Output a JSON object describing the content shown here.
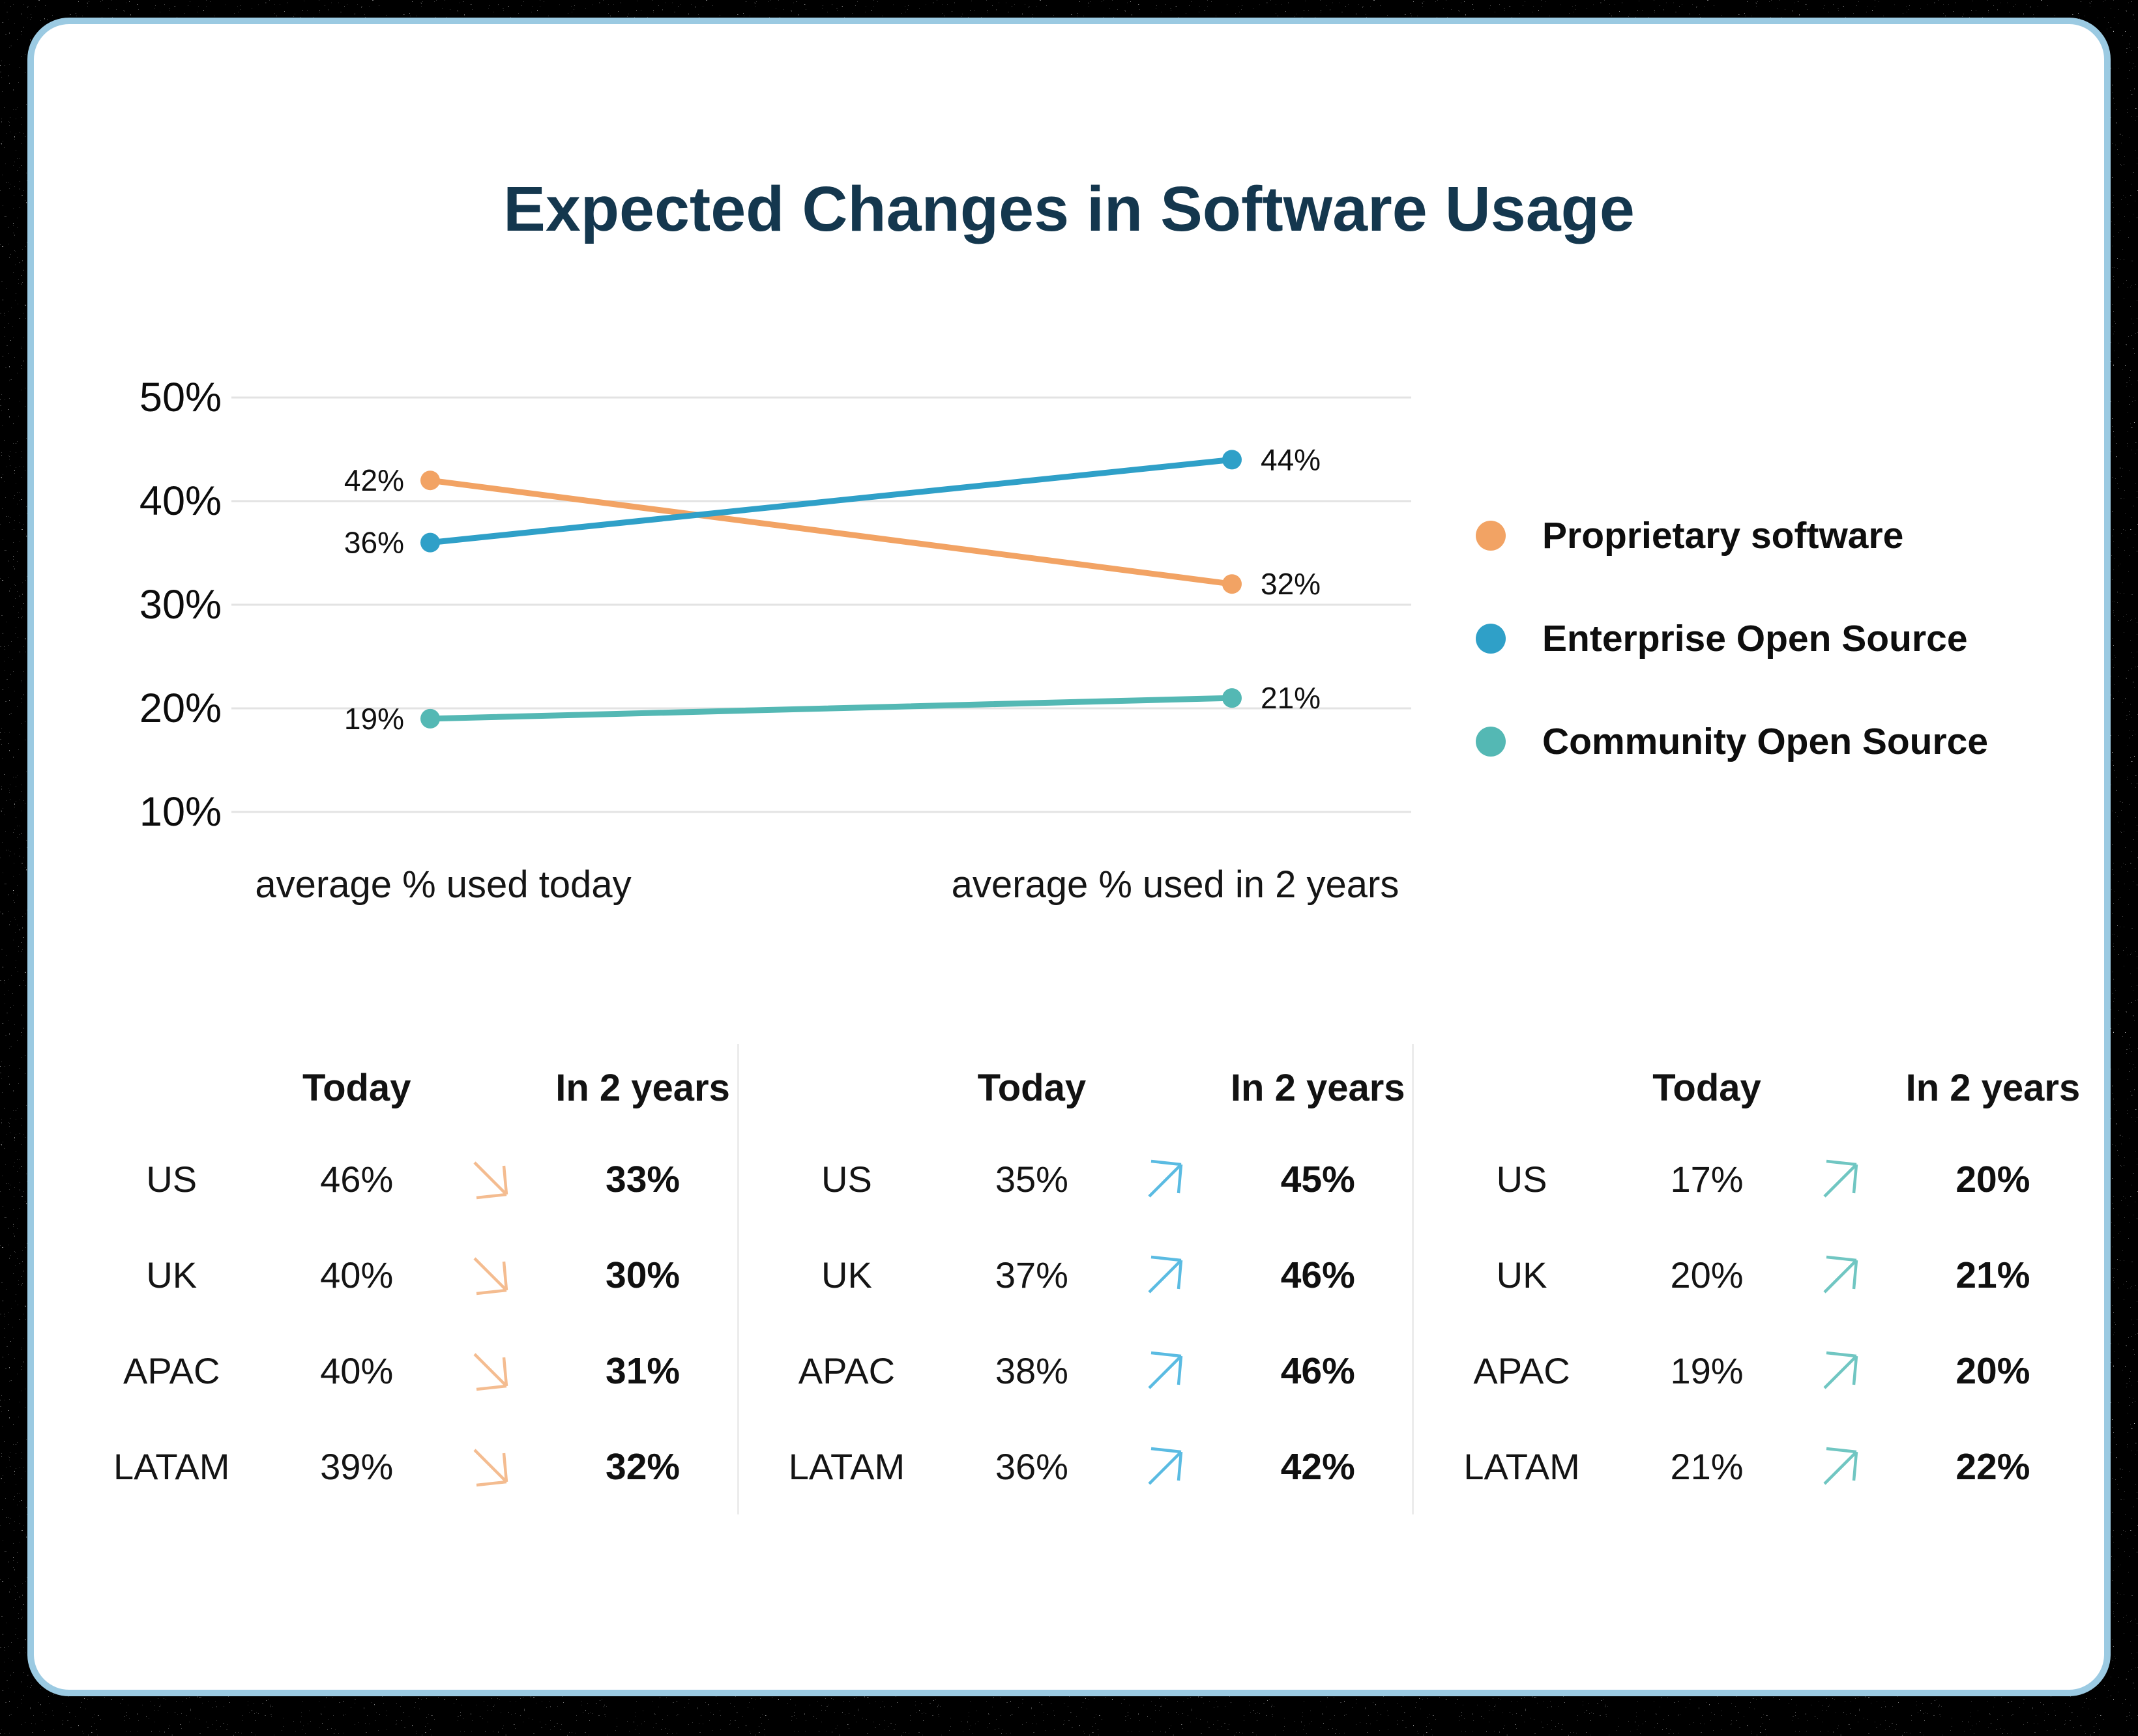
{
  "page": {
    "title": "Expected Changes in Software Usage"
  },
  "theme": {
    "card_border": "#9BCAE2",
    "title_color": "#14374E",
    "grid_color": "#E3E3E3",
    "divider_color": "#ECECEC",
    "background": "#000000",
    "text_color": "#121212"
  },
  "chart_data": {
    "type": "line",
    "subtype": "slope-chart",
    "title": "Expected Changes in Software Usage",
    "categories": [
      "average % used today",
      "average % used in 2 years"
    ],
    "series": [
      {
        "name": "Proprietary software",
        "color": "#F2A364",
        "values": [
          42,
          32
        ],
        "labels": [
          "42%",
          "32%"
        ]
      },
      {
        "name": "Enterprise Open Source",
        "color": "#2FA0C8",
        "values": [
          36,
          44
        ],
        "labels": [
          "36%",
          "44%"
        ]
      },
      {
        "name": "Community Open Source",
        "color": "#54B8B4",
        "values": [
          19,
          21
        ],
        "labels": [
          "19%",
          "21%"
        ]
      }
    ],
    "y_axis": {
      "ticks": [
        {
          "v": 50,
          "label": "50%"
        },
        {
          "v": 40,
          "label": "40%"
        },
        {
          "v": 30,
          "label": "30%"
        },
        {
          "v": 20,
          "label": "20%"
        },
        {
          "v": 10,
          "label": "10%"
        }
      ],
      "range": [
        10,
        50
      ]
    },
    "grid": true,
    "legend_position": "right"
  },
  "tables": [
    {
      "series": "Proprietary software",
      "direction": "down",
      "arrow_color": "#F4BC90",
      "headers": [
        "Today",
        "In 2 years"
      ],
      "rows": [
        {
          "region": "US",
          "today": "46%",
          "in2": "33%"
        },
        {
          "region": "UK",
          "today": "40%",
          "in2": "30%"
        },
        {
          "region": "APAC",
          "today": "40%",
          "in2": "31%"
        },
        {
          "region": "LATAM",
          "today": "39%",
          "in2": "32%"
        }
      ]
    },
    {
      "series": "Enterprise Open Source",
      "direction": "up",
      "arrow_color": "#5ABBE2",
      "headers": [
        "Today",
        "In 2 years"
      ],
      "rows": [
        {
          "region": "US",
          "today": "35%",
          "in2": "45%"
        },
        {
          "region": "UK",
          "today": "37%",
          "in2": "46%"
        },
        {
          "region": "APAC",
          "today": "38%",
          "in2": "46%"
        },
        {
          "region": "LATAM",
          "today": "36%",
          "in2": "42%"
        }
      ]
    },
    {
      "series": "Community Open Source",
      "direction": "up",
      "arrow_color": "#70C6C2",
      "headers": [
        "Today",
        "In 2 years"
      ],
      "rows": [
        {
          "region": "US",
          "today": "17%",
          "in2": "20%"
        },
        {
          "region": "UK",
          "today": "20%",
          "in2": "21%"
        },
        {
          "region": "APAC",
          "today": "19%",
          "in2": "20%"
        },
        {
          "region": "LATAM",
          "today": "21%",
          "in2": "22%"
        }
      ]
    }
  ]
}
